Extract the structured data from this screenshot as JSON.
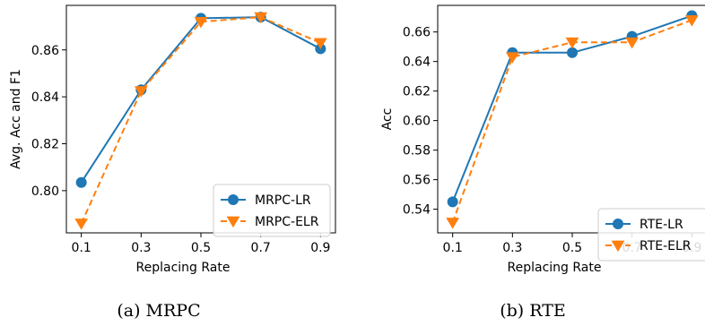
{
  "chart_data": [
    {
      "type": "line",
      "caption": "(a) MRPC",
      "xlabel": "Replacing Rate",
      "ylabel": "Avg. Acc and F1",
      "x": [
        0.1,
        0.3,
        0.5,
        0.7,
        0.9
      ],
      "x_ticks": [
        "0.1",
        "0.3",
        "0.5",
        "0.7",
        "0.9"
      ],
      "y_ticks": [
        "0.80",
        "0.82",
        "0.84",
        "0.86"
      ],
      "y_tick_values": [
        0.8,
        0.82,
        0.84,
        0.86
      ],
      "xlim": [
        0.05,
        0.95
      ],
      "ylim": [
        0.782,
        0.879
      ],
      "grid": false,
      "legend_position": "lower-right",
      "series": [
        {
          "name": "MRPC-LR",
          "values": [
            0.8035,
            0.843,
            0.8735,
            0.874,
            0.8605
          ],
          "color": "#1f77b4",
          "marker": "circle",
          "linestyle": "solid"
        },
        {
          "name": "MRPC-ELR",
          "values": [
            0.786,
            0.8425,
            0.872,
            0.874,
            0.863
          ],
          "color": "#ff7f0e",
          "marker": "triangle-down",
          "linestyle": "dashed"
        }
      ]
    },
    {
      "type": "line",
      "caption": "(b) RTE",
      "xlabel": "Replacing Rate",
      "ylabel": "Acc",
      "x": [
        0.1,
        0.3,
        0.5,
        0.7,
        0.9
      ],
      "x_ticks": [
        "0.1",
        "0.3",
        "0.5",
        "0.7",
        "0.9"
      ],
      "y_ticks": [
        "0.54",
        "0.56",
        "0.58",
        "0.60",
        "0.62",
        "0.64",
        "0.66"
      ],
      "y_tick_values": [
        0.54,
        0.56,
        0.58,
        0.6,
        0.62,
        0.64,
        0.66
      ],
      "xlim": [
        0.05,
        0.95
      ],
      "ylim": [
        0.524,
        0.678
      ],
      "grid": false,
      "legend_position": "lower-right",
      "series": [
        {
          "name": "RTE-LR",
          "values": [
            0.545,
            0.646,
            0.646,
            0.657,
            0.671
          ],
          "color": "#1f77b4",
          "marker": "circle",
          "linestyle": "solid"
        },
        {
          "name": "RTE-ELR",
          "values": [
            0.531,
            0.643,
            0.653,
            0.653,
            0.668
          ],
          "color": "#ff7f0e",
          "marker": "triangle-down",
          "linestyle": "dashed"
        }
      ]
    }
  ]
}
